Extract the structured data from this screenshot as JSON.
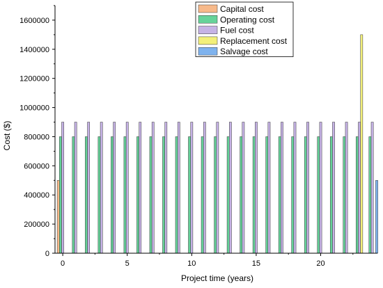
{
  "chart_data": {
    "type": "bar",
    "xlabel": "Project time (years)",
    "ylabel": "Cost ($)",
    "ylim": [
      0,
      1700000
    ],
    "xlim": [
      -0.6,
      24.4
    ],
    "x_ticks": [
      0,
      5,
      10,
      15,
      20
    ],
    "y_ticks": [
      0,
      200000,
      400000,
      600000,
      800000,
      1000000,
      1200000,
      1400000,
      1600000
    ],
    "legend_position": "top-right",
    "series": [
      {
        "name": "Capital cost",
        "color": "#f7b98a",
        "x": [
          0
        ],
        "values": [
          500000
        ]
      },
      {
        "name": "Operating cost",
        "color": "#66d39a",
        "x": [
          0,
          1,
          2,
          3,
          4,
          5,
          6,
          7,
          8,
          9,
          10,
          11,
          12,
          13,
          14,
          15,
          16,
          17,
          18,
          19,
          20,
          21,
          22,
          23,
          24
        ],
        "values": [
          800000,
          800000,
          800000,
          800000,
          800000,
          800000,
          800000,
          800000,
          800000,
          800000,
          800000,
          800000,
          800000,
          800000,
          800000,
          800000,
          800000,
          800000,
          800000,
          800000,
          800000,
          800000,
          800000,
          800000,
          800000
        ]
      },
      {
        "name": "Fuel cost",
        "color": "#c6b3e6",
        "x": [
          0,
          1,
          2,
          3,
          4,
          5,
          6,
          7,
          8,
          9,
          10,
          11,
          12,
          13,
          14,
          15,
          16,
          17,
          18,
          19,
          20,
          21,
          22,
          23,
          24
        ],
        "values": [
          900000,
          900000,
          900000,
          900000,
          900000,
          900000,
          900000,
          900000,
          900000,
          900000,
          900000,
          900000,
          900000,
          900000,
          900000,
          900000,
          900000,
          900000,
          900000,
          900000,
          900000,
          900000,
          900000,
          900000,
          900000
        ]
      },
      {
        "name": "Replacement cost",
        "color": "#f3f07a",
        "x": [
          23
        ],
        "values": [
          1500000
        ]
      },
      {
        "name": "Salvage cost",
        "color": "#7fb3ee",
        "x": [
          24
        ],
        "values": [
          500000
        ]
      }
    ]
  }
}
